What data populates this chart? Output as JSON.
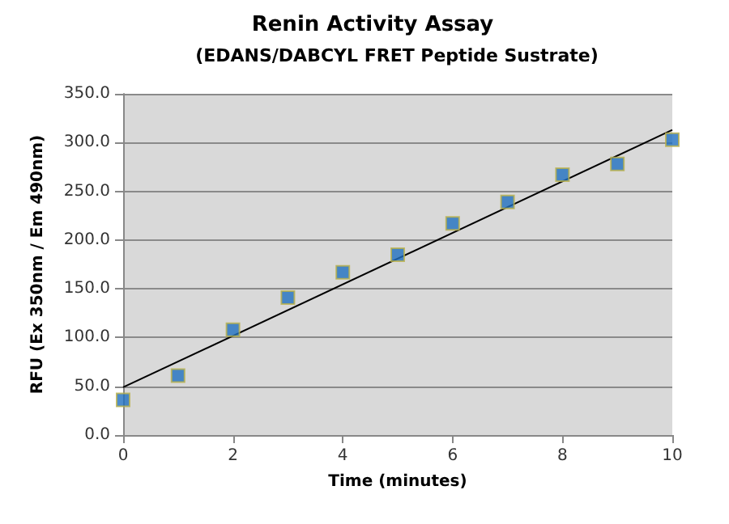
{
  "chart_data": {
    "type": "scatter",
    "title": "Renin Activity Assay",
    "subtitle": "(EDANS/DABCYL FRET Peptide Sustrate)",
    "xlabel": "Time (minutes)",
    "ylabel": "RFU (Ex 350nm / Em 490nm)",
    "series": [
      {
        "color": "#1f6fbf",
        "marker": "square",
        "x": [
          0,
          1,
          2,
          3,
          4,
          5,
          6,
          7,
          8,
          9,
          10
        ],
        "values": [
          36,
          61,
          108,
          141,
          167,
          185,
          217,
          239,
          267,
          278,
          303
        ]
      },
      {
        "type": "line",
        "color": "#000000",
        "marker": "none",
        "line_style": "solid",
        "x": [
          0,
          10
        ],
        "values": [
          49,
          313
        ]
      }
    ],
    "xlim": [
      0,
      10
    ],
    "xticks": [
      0,
      2,
      4,
      6,
      8,
      10
    ],
    "ylim": [
      0,
      350
    ],
    "yticks": [
      {
        "value": 0,
        "label": "0.0"
      },
      {
        "value": 50,
        "label": "50.0"
      },
      {
        "value": 100,
        "label": "100.0"
      },
      {
        "value": 150,
        "label": "150.0"
      },
      {
        "value": 200,
        "label": "200.0"
      },
      {
        "value": 250,
        "label": "250.0"
      },
      {
        "value": 300,
        "label": "300.0"
      },
      {
        "value": 350,
        "label": "350.0"
      }
    ],
    "grid": "y"
  }
}
